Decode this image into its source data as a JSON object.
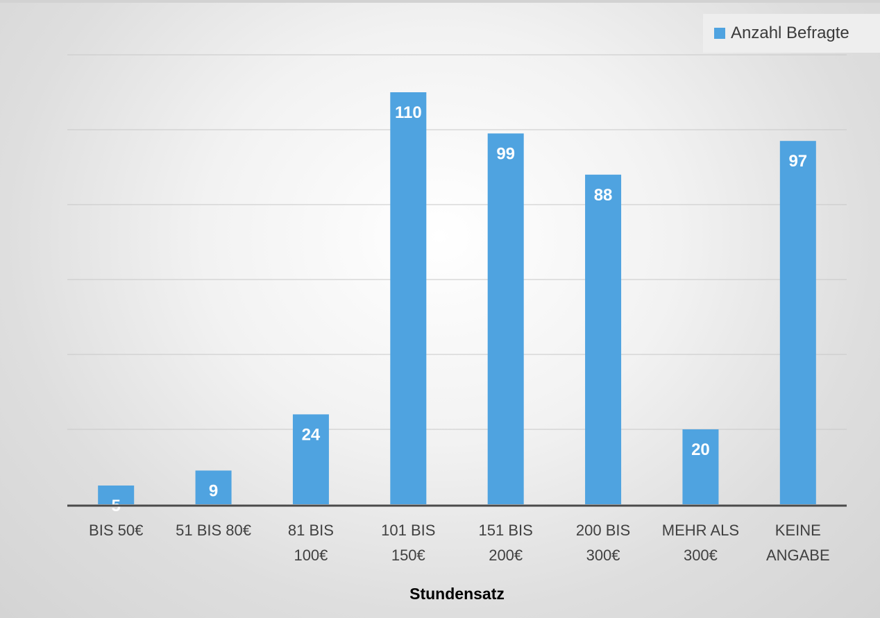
{
  "chart_data": {
    "type": "bar",
    "categories": [
      [
        "BIS 50€"
      ],
      [
        "51 BIS 80€"
      ],
      [
        "81 BIS",
        "100€"
      ],
      [
        "101 BIS",
        "150€"
      ],
      [
        "151 BIS",
        "200€"
      ],
      [
        "200 BIS",
        "300€"
      ],
      [
        "MEHR ALS",
        "300€"
      ],
      [
        "KEINE",
        "ANGABE"
      ]
    ],
    "series": [
      {
        "name": "Anzahl Befragte",
        "values": [
          5,
          9,
          24,
          110,
          99,
          88,
          20,
          97
        ],
        "color": "#4fa3e0"
      }
    ],
    "title": "",
    "xlabel": "Stundensatz",
    "ylabel": "",
    "ylim": [
      0,
      120
    ],
    "grid": true,
    "legend_position": "top-right",
    "data_labels": true
  }
}
